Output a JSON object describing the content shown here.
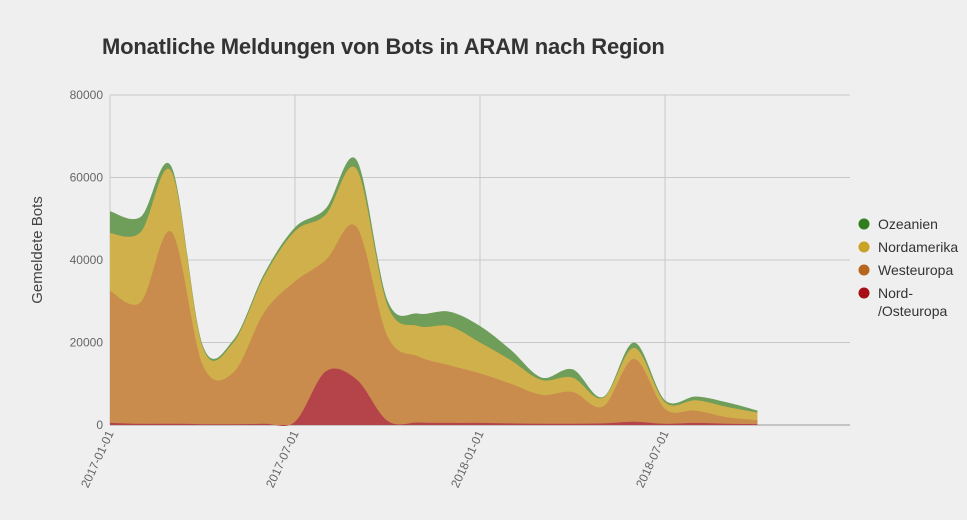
{
  "chart_data": {
    "type": "area",
    "stacked": true,
    "title": "Monatliche Meldungen von Bots in ARAM nach Region",
    "xlabel": "",
    "ylabel": "Gemeldete Bots",
    "ylim": [
      0,
      80000
    ],
    "yticks": [
      "0",
      "20000",
      "40000",
      "60000",
      "80000"
    ],
    "ytick_values": [
      0,
      20000,
      40000,
      60000,
      80000
    ],
    "xlim": [
      0,
      24
    ],
    "xticks": [
      {
        "label": "2017-01-01",
        "pos": 0
      },
      {
        "label": "2017-07-01",
        "pos": 6
      },
      {
        "label": "2018-01-01",
        "pos": 12
      },
      {
        "label": "2018-07-01",
        "pos": 18
      }
    ],
    "x": [
      0,
      1,
      2,
      3,
      4,
      5,
      6,
      7,
      8,
      9,
      10,
      11,
      12,
      13,
      14,
      15,
      16,
      17,
      18,
      19,
      20,
      21
    ],
    "grid": true,
    "legend_position": "right",
    "series": [
      {
        "name": "Nord-/Osteuropa",
        "label_lines": [
          "Nord-",
          "/Osteuropa"
        ],
        "color": "#a50f15",
        "fill": "#b5444a",
        "values": [
          500,
          300,
          300,
          200,
          200,
          300,
          800,
          13000,
          11000,
          1000,
          600,
          500,
          500,
          400,
          300,
          300,
          400,
          800,
          300,
          500,
          300,
          200
        ]
      },
      {
        "name": "Westeuropa",
        "label_lines": [
          "Westeuropa"
        ],
        "color": "#b5651d",
        "fill": "#c98c4d",
        "values": [
          32000,
          29500,
          46500,
          14500,
          12500,
          27000,
          34000,
          27000,
          37000,
          20500,
          16000,
          14000,
          12000,
          9600,
          7000,
          7700,
          4100,
          15200,
          3600,
          3000,
          1600,
          1000
        ]
      },
      {
        "name": "Nordamerika",
        "label_lines": [
          "Nordamerika"
        ],
        "color": "#c9a227",
        "fill": "#d0b04a",
        "values": [
          14000,
          17000,
          14500,
          4300,
          7300,
          8700,
          12200,
          11000,
          14000,
          7500,
          7400,
          9500,
          7500,
          5700,
          3600,
          3500,
          2100,
          2700,
          1600,
          2500,
          2500,
          1800
        ]
      },
      {
        "name": "Ozeanien",
        "label_lines": [
          "Ozeanien"
        ],
        "color": "#2e7d1e",
        "fill": "#6f9e5a",
        "values": [
          5300,
          3700,
          1200,
          500,
          600,
          700,
          900,
          1500,
          2200,
          1200,
          3000,
          3500,
          4000,
          2500,
          600,
          2000,
          200,
          1300,
          500,
          900,
          1100,
          500
        ]
      }
    ]
  }
}
